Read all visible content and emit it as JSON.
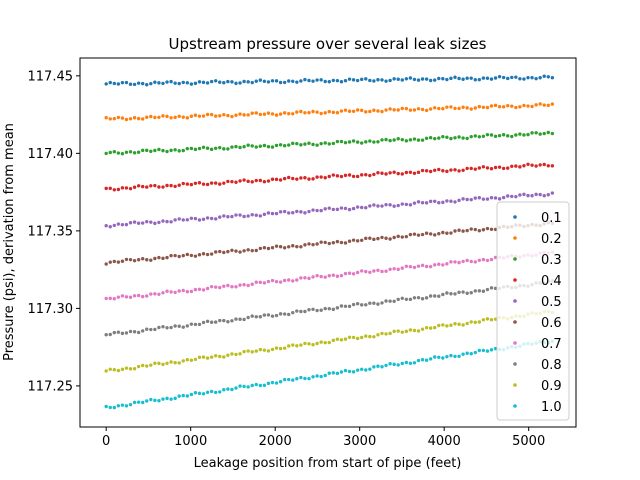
{
  "chart_data": {
    "type": "scatter",
    "title": "Upstream pressure over several leak sizes",
    "xlabel": "Leakage position from start of pipe (feet)",
    "ylabel": "Pressure (psi), derivation from mean",
    "xlim": [
      -310,
      5560
    ],
    "ylim": [
      117.2235,
      117.4615
    ],
    "x_ticks": [
      0,
      1000,
      2000,
      3000,
      4000,
      5000
    ],
    "y_ticks": [
      117.25,
      117.3,
      117.35,
      117.4,
      117.45
    ],
    "x_tick_labels": [
      "0",
      "1000",
      "2000",
      "3000",
      "4000",
      "5000"
    ],
    "y_tick_labels": [
      "117.25",
      "117.30",
      "117.35",
      "117.40",
      "117.45"
    ],
    "legend_position": "lower-right",
    "x_range": [
      0,
      5280
    ],
    "series": [
      {
        "name": "0.1",
        "color": "#1f77b4",
        "y_start": 117.4448,
        "y_end": 117.449
      },
      {
        "name": "0.2",
        "color": "#ff7f0e",
        "y_start": 117.4222,
        "y_end": 117.4312
      },
      {
        "name": "0.3",
        "color": "#2ca02c",
        "y_start": 117.4002,
        "y_end": 117.413
      },
      {
        "name": "0.4",
        "color": "#d62728",
        "y_start": 117.377,
        "y_end": 117.3928
      },
      {
        "name": "0.5",
        "color": "#9467bd",
        "y_start": 117.3535,
        "y_end": 117.374
      },
      {
        "name": "0.6",
        "color": "#8c564b",
        "y_start": 117.3295,
        "y_end": 117.355
      },
      {
        "name": "0.7",
        "color": "#e377c2",
        "y_start": 117.306,
        "y_end": 117.336
      },
      {
        "name": "0.8",
        "color": "#7f7f7f",
        "y_start": 117.283,
        "y_end": 117.317
      },
      {
        "name": "0.9",
        "color": "#bcbd22",
        "y_start": 117.2595,
        "y_end": 117.298
      },
      {
        "name": "1.0",
        "color": "#17becf",
        "y_start": 117.236,
        "y_end": 117.279
      }
    ]
  }
}
